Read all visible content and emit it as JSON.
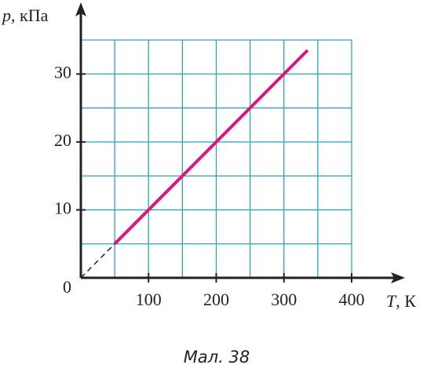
{
  "chart_data": {
    "type": "line",
    "caption": "Мал. 38",
    "xlabel_symbol": "T",
    "xlabel_unit": ", К",
    "ylabel_symbol": "p",
    "ylabel_unit": ", кПа",
    "xlim": [
      0,
      400
    ],
    "ylim": [
      0,
      35
    ],
    "xticks": [
      100,
      200,
      300,
      400
    ],
    "yticks": [
      0,
      10,
      20,
      30
    ],
    "grid": true,
    "grid_color": "#2ba4b6",
    "xgrid": [
      50,
      100,
      150,
      200,
      250,
      300,
      350,
      400
    ],
    "ygrid": [
      5,
      10,
      15,
      20,
      25,
      30,
      35
    ],
    "series": [
      {
        "color": "#d9177f",
        "style": "solid",
        "x": [
          50,
          335
        ],
        "values": [
          5,
          33.5
        ]
      },
      {
        "color": "#222222",
        "style": "dashed",
        "x": [
          0,
          50
        ],
        "values": [
          0,
          5
        ]
      }
    ]
  }
}
